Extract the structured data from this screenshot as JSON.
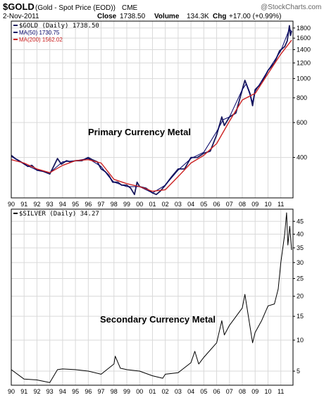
{
  "header": {
    "symbol": "$GOLD",
    "description": "(Gold - Spot Price (EOD))",
    "exchange": "CME",
    "date": "2-Nov-2011",
    "close_label": "Close",
    "close_value": "1738.50",
    "volume_label": "Volume",
    "volume_value": "134.3K",
    "chg_label": "Chg",
    "chg_value": "+17.00 (+0.99%)",
    "brand": "@StockCharts.com"
  },
  "colors": {
    "gold_price": "#1a1a5e",
    "ma50": "#000066",
    "ma200": "#cc2222",
    "silver_price": "#000000",
    "grid": "#d9d9d9",
    "frame": "#000000"
  },
  "chart_data": [
    {
      "type": "line",
      "panel": "top",
      "scale": "log",
      "legend": [
        {
          "label": "$GOLD (Daily) 1738.50",
          "color": "#1a1a5e"
        },
        {
          "label": "MA(50) 1730.75",
          "color": "#000066"
        },
        {
          "label": "MA(200) 1562.02",
          "color": "#cc2222"
        }
      ],
      "annotation": "Primary Currency Metal",
      "x_tick_labels": [
        "90",
        "91",
        "92",
        "93",
        "94",
        "95",
        "96",
        "97",
        "98",
        "99",
        "00",
        "01",
        "02",
        "03",
        "04",
        "05",
        "06",
        "07",
        "08",
        "09",
        "10",
        "11"
      ],
      "y_tick_labels": [
        "1800",
        "1600",
        "1400",
        "1200",
        "1000",
        "800",
        "600",
        "400"
      ],
      "y_ticks": [
        1800,
        1600,
        1400,
        1200,
        1000,
        800,
        600,
        400
      ],
      "ylim": [
        250,
        1950
      ],
      "xlim": [
        1990.0,
        2011.95
      ],
      "series": [
        {
          "name": "$GOLD",
          "x": [
            1990.0,
            1990.3,
            1990.6,
            1990.9,
            1991.3,
            1991.6,
            1992.0,
            1992.5,
            1993.0,
            1993.3,
            1993.6,
            1993.9,
            1994.3,
            1994.6,
            1995.0,
            1995.5,
            1996.0,
            1996.3,
            1996.7,
            1997.0,
            1997.3,
            1997.6,
            1997.9,
            1998.3,
            1998.6,
            1999.0,
            1999.3,
            1999.6,
            1999.8,
            2000.0,
            2000.5,
            2001.0,
            2001.3,
            2001.6,
            2002.0,
            2002.5,
            2003.0,
            2003.5,
            2004.0,
            2004.5,
            2005.0,
            2005.5,
            2006.0,
            2006.4,
            2006.6,
            2007.0,
            2007.5,
            2008.0,
            2008.2,
            2008.6,
            2008.8,
            2009.0,
            2009.5,
            2010.0,
            2010.5,
            2010.9,
            2011.3,
            2011.5,
            2011.67,
            2011.75,
            2011.84
          ],
          "y": [
            410,
            395,
            385,
            375,
            360,
            365,
            345,
            340,
            330,
            360,
            395,
            370,
            385,
            380,
            385,
            385,
            400,
            390,
            380,
            350,
            340,
            325,
            300,
            300,
            290,
            290,
            280,
            260,
            300,
            285,
            280,
            265,
            260,
            270,
            290,
            320,
            350,
            350,
            400,
            400,
            420,
            430,
            520,
            640,
            580,
            640,
            670,
            880,
            980,
            840,
            730,
            880,
            950,
            1100,
            1200,
            1380,
            1450,
            1550,
            1850,
            1650,
            1738.5
          ]
        },
        {
          "name": "MA(50)",
          "x": [
            1990.0,
            1991.0,
            1992.0,
            1993.0,
            1994.0,
            1995.0,
            1996.0,
            1997.0,
            1997.6,
            1998.0,
            1999.0,
            2000.0,
            2001.0,
            2002.0,
            2003.0,
            2004.0,
            2005.0,
            2006.0,
            2006.5,
            2007.0,
            2008.0,
            2008.3,
            2008.8,
            2009.0,
            2010.0,
            2011.0,
            2011.67,
            2011.84
          ],
          "y": [
            405,
            370,
            345,
            335,
            380,
            385,
            395,
            360,
            320,
            300,
            285,
            285,
            265,
            290,
            345,
            395,
            425,
            540,
            620,
            640,
            880,
            940,
            760,
            860,
            1100,
            1380,
            1780,
            1730.75
          ]
        },
        {
          "name": "MA(200)",
          "x": [
            1990.0,
            1991.0,
            1992.0,
            1993.0,
            1994.0,
            1995.0,
            1996.0,
            1997.0,
            1998.0,
            1999.0,
            2000.0,
            2001.0,
            2002.0,
            2003.0,
            2004.0,
            2005.0,
            2006.0,
            2007.0,
            2008.0,
            2008.8,
            2009.0,
            2010.0,
            2011.0,
            2011.84
          ],
          "y": [
            390,
            375,
            350,
            335,
            365,
            385,
            390,
            375,
            310,
            295,
            285,
            270,
            275,
            320,
            375,
            410,
            470,
            610,
            780,
            830,
            840,
            1060,
            1330,
            1562.02
          ]
        }
      ]
    },
    {
      "type": "line",
      "panel": "bottom",
      "scale": "sqrt",
      "legend": [
        {
          "label": "$SILVER (Daily) 34.27",
          "color": "#000000"
        }
      ],
      "annotation": "Secondary Currency Metal",
      "x_tick_labels": [
        "90",
        "91",
        "92",
        "93",
        "94",
        "95",
        "96",
        "97",
        "98",
        "99",
        "00",
        "01",
        "02",
        "03",
        "04",
        "05",
        "06",
        "07",
        "08",
        "09",
        "10",
        "11"
      ],
      "y_tick_labels": [
        "45",
        "40",
        "35",
        "30",
        "25",
        "20",
        "15",
        "10",
        "5"
      ],
      "y_ticks": [
        45,
        40,
        35,
        30,
        25,
        20,
        15,
        10,
        5
      ],
      "ylim": [
        3.3,
        50
      ],
      "xlim": [
        1990.0,
        2011.95
      ],
      "series": [
        {
          "name": "$SILVER",
          "x": [
            1990.0,
            1991.0,
            1992.0,
            1993.0,
            1993.6,
            1994.0,
            1995.0,
            1996.0,
            1997.0,
            1998.0,
            1998.1,
            1998.5,
            1999.0,
            2000.0,
            2001.0,
            2001.8,
            2002.0,
            2003.0,
            2004.0,
            2004.3,
            2004.6,
            2005.0,
            2006.0,
            2006.4,
            2006.6,
            2007.0,
            2008.0,
            2008.2,
            2008.8,
            2009.0,
            2009.5,
            2010.0,
            2010.5,
            2010.8,
            2011.0,
            2011.3,
            2011.45,
            2011.55,
            2011.7,
            2011.84
          ],
          "y": [
            5.2,
            4.0,
            3.9,
            3.6,
            5.2,
            5.3,
            5.2,
            5.0,
            4.6,
            6.0,
            7.2,
            5.4,
            5.2,
            5.0,
            4.4,
            4.1,
            4.6,
            4.8,
            6.2,
            8.0,
            6.0,
            7.0,
            9.5,
            14.0,
            11.0,
            13.0,
            17.0,
            20.5,
            9.5,
            11.5,
            14.0,
            17.5,
            18.0,
            22.0,
            30.0,
            40.0,
            48.5,
            36.0,
            43.0,
            34.27
          ]
        }
      ]
    }
  ]
}
